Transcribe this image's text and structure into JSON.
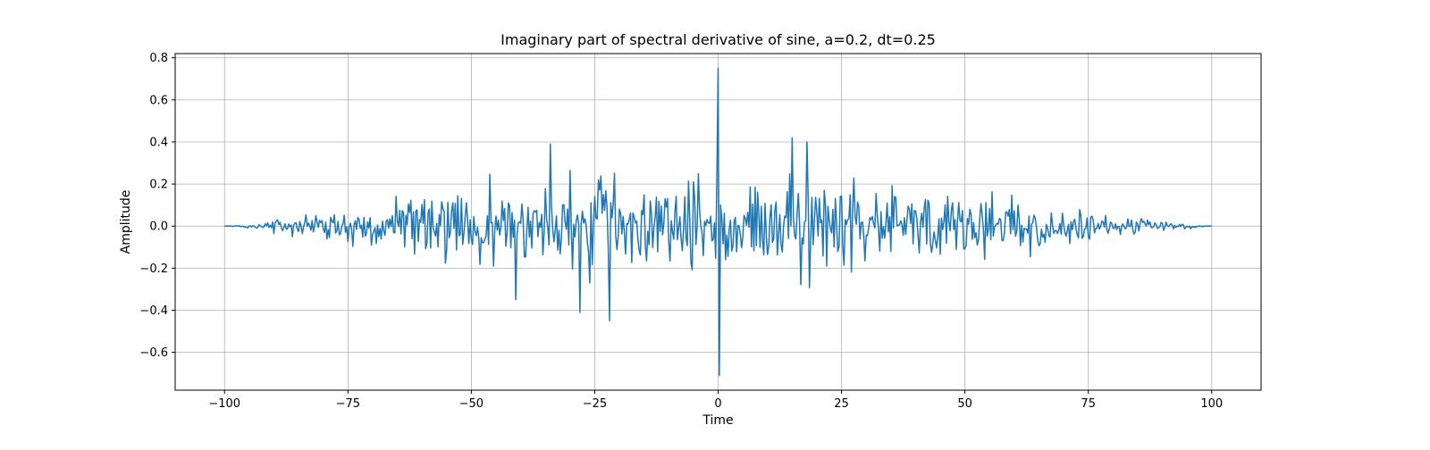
{
  "chart_data": {
    "type": "line",
    "title": "Imaginary part of spectral derivative of sine, a=0.2, dt=0.25",
    "xlabel": "Time",
    "ylabel": "Amplitude",
    "xlim": [
      -110,
      110
    ],
    "ylim": [
      -0.78,
      0.82
    ],
    "xticks": [
      -100,
      -75,
      -50,
      -25,
      0,
      25,
      50,
      75,
      100
    ],
    "xtick_labels": [
      "−100",
      "−75",
      "−50",
      "−25",
      "0",
      "25",
      "50",
      "75",
      "100"
    ],
    "yticks": [
      -0.6,
      -0.4,
      -0.2,
      0.0,
      0.2,
      0.4,
      0.6,
      0.8
    ],
    "ytick_labels": [
      "−0.6",
      "−0.4",
      "−0.2",
      "0.0",
      "0.2",
      "0.4",
      "0.6",
      "0.8"
    ],
    "grid": true,
    "line_color": "#1f77b4",
    "series": [
      {
        "x_start": -100,
        "x_step": 0.25,
        "y": []
      }
    ],
    "peaks": [
      {
        "x": 0,
        "y": 0.75
      },
      {
        "x": 0,
        "y": -0.71
      },
      {
        "x": -28,
        "y": -0.41
      },
      {
        "x": -22,
        "y": -0.45
      },
      {
        "x": 15,
        "y": 0.42
      },
      {
        "x": 18,
        "y": 0.4
      },
      {
        "x": -34,
        "y": 0.39
      },
      {
        "x": -41,
        "y": -0.35
      }
    ]
  }
}
